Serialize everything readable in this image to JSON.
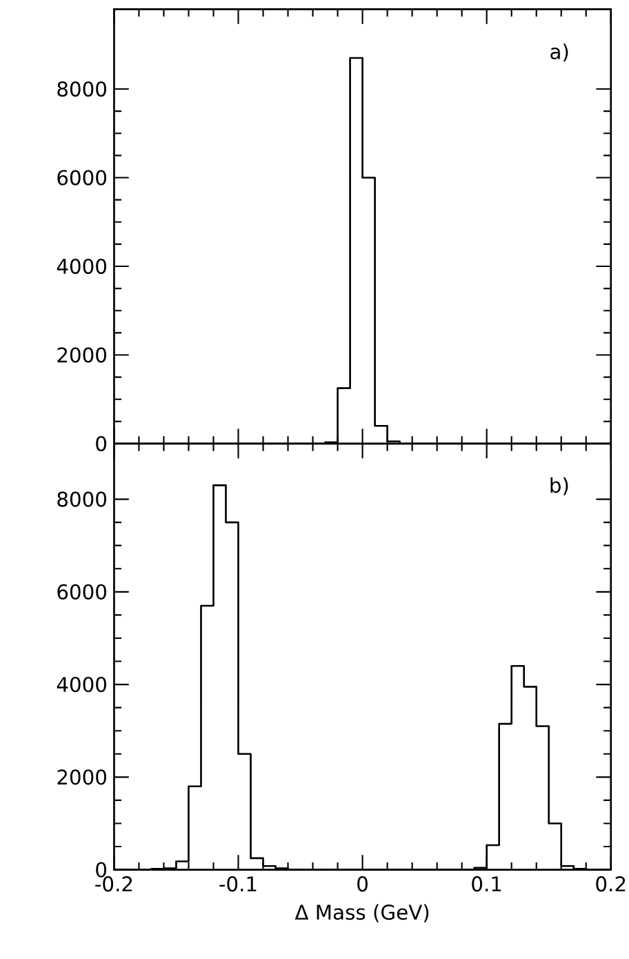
{
  "chart_data": [
    {
      "type": "histogram",
      "bins": [
        -0.2,
        -0.19,
        -0.18,
        -0.17,
        -0.16,
        -0.15,
        -0.14,
        -0.13,
        -0.12,
        -0.11,
        -0.1,
        -0.09,
        -0.08,
        -0.07,
        -0.06,
        -0.05,
        -0.04,
        -0.03,
        -0.02,
        -0.01,
        0,
        0.01,
        0.02,
        0.03,
        0.04,
        0.05,
        0.06,
        0.07,
        0.08,
        0.09,
        0.1,
        0.11,
        0.12,
        0.13,
        0.14,
        0.15,
        0.16,
        0.17,
        0.18,
        0.19,
        0.2
      ],
      "values": [
        0,
        0,
        0,
        0,
        0,
        0,
        0,
        0,
        0,
        0,
        0,
        0,
        0,
        0,
        0,
        0,
        0,
        30,
        1250,
        8700,
        6000,
        400,
        50,
        0,
        0,
        0,
        0,
        0,
        0,
        0,
        0,
        0,
        0,
        0,
        0,
        0,
        0,
        0,
        0,
        0
      ],
      "color": "#000000",
      "xlim": [
        -0.2,
        0.2
      ],
      "xticks": [
        -0.2,
        -0.1,
        0,
        0.1,
        0.2
      ],
      "ylim": [
        0,
        9800
      ],
      "yticks": [
        0,
        2000,
        4000,
        6000,
        8000
      ],
      "tick_labels": "y",
      "annotations": [
        "a)"
      ]
    },
    {
      "type": "histogram",
      "bins": [
        -0.2,
        -0.19,
        -0.18,
        -0.17,
        -0.16,
        -0.15,
        -0.14,
        -0.13,
        -0.12,
        -0.11,
        -0.1,
        -0.09,
        -0.08,
        -0.07,
        -0.06,
        -0.05,
        -0.04,
        -0.03,
        -0.02,
        -0.01,
        0,
        0.01,
        0.02,
        0.03,
        0.04,
        0.05,
        0.06,
        0.07,
        0.08,
        0.09,
        0.1,
        0.11,
        0.12,
        0.13,
        0.14,
        0.15,
        0.16,
        0.17,
        0.18,
        0.19,
        0.2
      ],
      "values": [
        0,
        0,
        0,
        20,
        30,
        180,
        1800,
        5700,
        8300,
        7500,
        2500,
        250,
        80,
        30,
        0,
        0,
        0,
        0,
        0,
        0,
        0,
        0,
        0,
        0,
        0,
        0,
        0,
        0,
        0,
        40,
        530,
        3150,
        4400,
        3950,
        3100,
        1000,
        80,
        20,
        0,
        0
      ],
      "color": "#000000",
      "xlim": [
        -0.2,
        0.2
      ],
      "xticks": [
        -0.2,
        -0.1,
        0,
        0.1,
        0.2
      ],
      "ylim": [
        0,
        9200
      ],
      "yticks": [
        0,
        2000,
        4000,
        6000,
        8000
      ],
      "xlabel": "Δ Mass  (GeV)",
      "annotations": [
        "b)"
      ]
    }
  ]
}
